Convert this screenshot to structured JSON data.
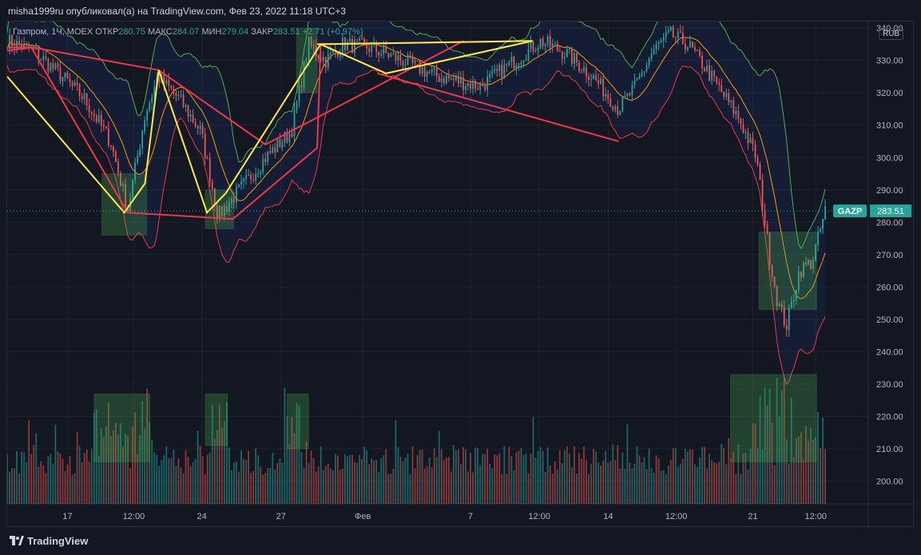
{
  "header": {
    "text": "misha1999ru опубликовал(а) на TradingView.com, Фев 23, 2022 11:18 UTC+3"
  },
  "legend": {
    "symbol": "Газпром, 1Ч, MOEX",
    "open_label": "ОТКР",
    "open": "280.75",
    "high_label": "МАКС",
    "high": "284.07",
    "low_label": "МИН",
    "low": "279.04",
    "close_label": "ЗАКР",
    "close": "283.51",
    "change": "+2.71 (+0.97%)"
  },
  "currency": "RUB",
  "footer": {
    "brand": "TradingView"
  },
  "colors": {
    "background": "#131722",
    "grid": "#1e222d",
    "axis_text": "#b2b5be",
    "up": "#26a69a",
    "down": "#ef5350",
    "yellow": "#ffeb3b",
    "red_line": "#f23645",
    "bb_upper": "#4caf50",
    "bb_lower": "#f23645",
    "bb_basis": "#ff9800",
    "box": "#4caf50"
  },
  "chart_data": {
    "type": "candlestick",
    "ticker": "GAZP",
    "last_price": "283.51",
    "y_ticks": [
      "340.00",
      "330.00",
      "320.00",
      "310.00",
      "300.00",
      "290.00",
      "280.00",
      "270.00",
      "260.00",
      "250.00",
      "240.00",
      "230.00",
      "220.00",
      "210.00",
      "200.00"
    ],
    "ylim": [
      193,
      342
    ],
    "x_ticks": [
      "17",
      "12:00",
      "24",
      "27",
      "Фев",
      "7",
      "12:00",
      "14",
      "12:00",
      "21",
      "12:00"
    ],
    "x_tick_positions": [
      0.07,
      0.147,
      0.226,
      0.318,
      0.413,
      0.538,
      0.618,
      0.698,
      0.777,
      0.866,
      0.939
    ],
    "price_path": [
      [
        0.0,
        336
      ],
      [
        0.03,
        333
      ],
      [
        0.06,
        326
      ],
      [
        0.09,
        318
      ],
      [
        0.12,
        305
      ],
      [
        0.14,
        284
      ],
      [
        0.16,
        313
      ],
      [
        0.175,
        325
      ],
      [
        0.2,
        318
      ],
      [
        0.225,
        308
      ],
      [
        0.245,
        282
      ],
      [
        0.27,
        290
      ],
      [
        0.3,
        300
      ],
      [
        0.33,
        308
      ],
      [
        0.35,
        335
      ],
      [
        0.37,
        330
      ],
      [
        0.39,
        335
      ],
      [
        0.42,
        334
      ],
      [
        0.45,
        331
      ],
      [
        0.5,
        325
      ],
      [
        0.55,
        322
      ],
      [
        0.6,
        332
      ],
      [
        0.62,
        336
      ],
      [
        0.65,
        332
      ],
      [
        0.68,
        325
      ],
      [
        0.71,
        315
      ],
      [
        0.73,
        322
      ],
      [
        0.75,
        333
      ],
      [
        0.77,
        338
      ],
      [
        0.79,
        335
      ],
      [
        0.81,
        328
      ],
      [
        0.83,
        320
      ],
      [
        0.85,
        312
      ],
      [
        0.87,
        300
      ],
      [
        0.885,
        270
      ],
      [
        0.895,
        255
      ],
      [
        0.905,
        248
      ],
      [
        0.92,
        265
      ],
      [
        0.935,
        268
      ],
      [
        0.95,
        283.5
      ]
    ],
    "yellow_lines": [
      [
        [
          0.0,
          325
        ],
        [
          0.136,
          283
        ],
        [
          0.16,
          292
        ],
        [
          0.176,
          327
        ],
        [
          0.232,
          283
        ],
        [
          0.254,
          289
        ],
        [
          0.364,
          335
        ],
        [
          0.44,
          326
        ],
        [
          0.61,
          336
        ]
      ],
      [
        [
          0.36,
          335
        ],
        [
          0.61,
          336
        ]
      ]
    ],
    "red_lines": [
      [
        [
          0.0,
          333
        ],
        [
          0.028,
          334
        ],
        [
          0.14,
          283
        ],
        [
          0.262,
          281
        ],
        [
          0.36,
          303
        ],
        [
          0.364,
          335
        ],
        [
          0.61,
          336
        ]
      ],
      [
        [
          0.0,
          334
        ],
        [
          0.03,
          334
        ],
        [
          0.176,
          327
        ],
        [
          0.3,
          304
        ],
        [
          0.53,
          336
        ]
      ],
      [
        [
          0.43,
          326
        ],
        [
          0.71,
          305
        ]
      ]
    ],
    "boxes": [
      [
        0.11,
        0.162,
        276,
        295
      ],
      [
        0.23,
        0.263,
        278,
        290
      ],
      [
        0.336,
        0.36,
        320,
        340
      ],
      [
        0.873,
        0.94,
        253,
        277
      ],
      [
        0.101,
        0.166,
        206,
        227
      ],
      [
        0.23,
        0.256,
        211,
        227
      ],
      [
        0.325,
        0.35,
        210,
        227
      ],
      [
        0.84,
        0.94,
        206,
        233
      ]
    ]
  }
}
